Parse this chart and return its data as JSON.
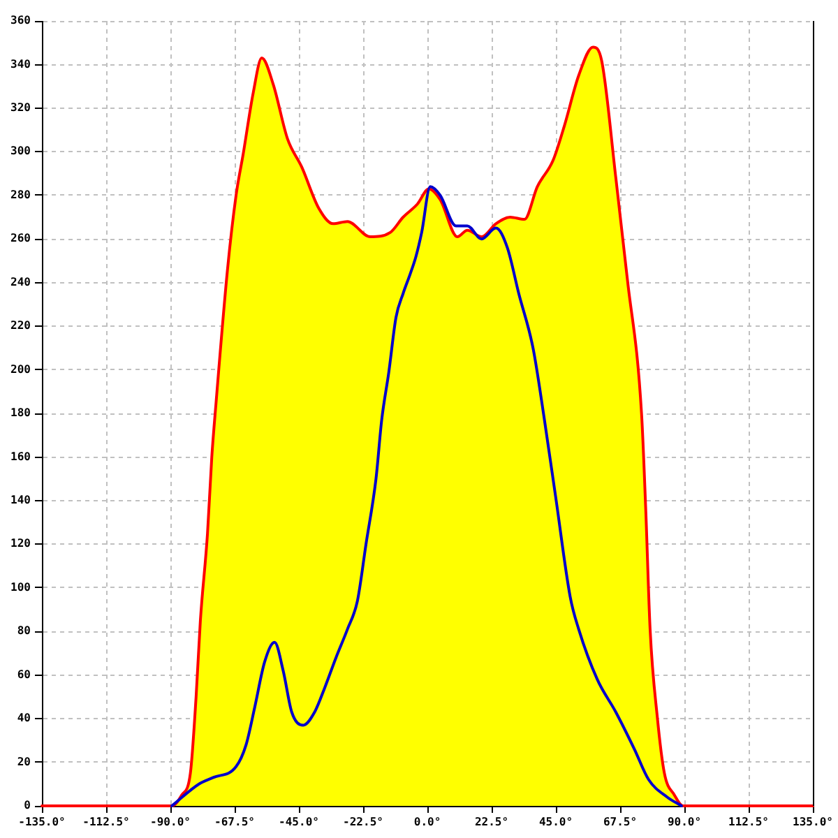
{
  "chart_data": {
    "type": "area",
    "xlim": [
      -135,
      135
    ],
    "xticks": [
      {
        "value": -135,
        "label": "-135.0°"
      },
      {
        "value": -112.5,
        "label": "-112.5°"
      },
      {
        "value": -90,
        "label": "-90.0°"
      },
      {
        "value": -67.5,
        "label": "-67.5°"
      },
      {
        "value": -45,
        "label": "-45.0°"
      },
      {
        "value": -22.5,
        "label": "-22.5°"
      },
      {
        "value": 0,
        "label": "0.0°"
      },
      {
        "value": 22.5,
        "label": "22.5°"
      },
      {
        "value": 45,
        "label": "45.0°"
      },
      {
        "value": 67.5,
        "label": "67.5°"
      },
      {
        "value": 90,
        "label": "90.0°"
      },
      {
        "value": 112.5,
        "label": "112.5°"
      },
      {
        "value": 135,
        "label": "135.0°"
      }
    ],
    "ylim": [
      0,
      360
    ],
    "yticks": [
      0,
      20,
      40,
      60,
      80,
      100,
      120,
      140,
      160,
      180,
      200,
      220,
      240,
      260,
      280,
      300,
      320,
      340,
      360
    ],
    "grid": true,
    "series": [
      {
        "color": "#ff0000",
        "colors": [
          "#ffff00",
          "#ffff00",
          "#ffff00",
          "#ffff00",
          "#ffff00",
          "#ffff00",
          "#ffff00",
          "#ffff00",
          "#ffff00",
          "#ffff00",
          "#ffff00",
          "#ffff00",
          "#ffff00",
          "#ffff00",
          "#ffff00",
          "#ffff00",
          "#ffff00",
          "#ffff00",
          "#ffff00",
          "#ffff00",
          "#ffff00",
          "#ffff00",
          "#ffff00",
          "#ffff00",
          "#ffff00",
          "#ffff00",
          "#ffff00",
          "#ffff00",
          "#ffff00",
          "#ffff00",
          "#ffff00",
          "#ffff00",
          "#ffff00",
          "#ffff00",
          "#ffff00",
          "#ffff00",
          "#ffff00",
          "#ffff00",
          "#ffff00",
          "#ffff00",
          "#ffff00",
          "#ffff00",
          "#ffff00",
          "#ffff00",
          "#ffff00",
          "#ffff00",
          "#ffff00",
          "#ffff00"
        ],
        "x": [
          -135,
          -89.5,
          -86,
          -83,
          -81,
          -79.5,
          -77,
          -75.5,
          -74,
          -70,
          -67,
          -64.5,
          -61,
          -58,
          -54,
          -49,
          -44,
          -38,
          -33,
          -28,
          -20,
          -13,
          -8.5,
          -3.5,
          0.5,
          4.5,
          10.5,
          14,
          19,
          24,
          29,
          34,
          38.5,
          44,
          48,
          53,
          58,
          61,
          66,
          70,
          75,
          76.5,
          78,
          80.5,
          83,
          86.5,
          89.5,
          135
        ],
        "values": [
          0,
          0,
          5,
          15,
          50,
          85,
          125,
          160,
          185,
          246,
          280,
          299,
          327,
          343,
          331,
          306,
          293,
          274,
          267,
          268,
          261,
          263,
          270,
          276,
          283,
          278,
          261,
          264,
          261,
          267,
          270,
          269,
          284,
          296,
          312,
          335,
          348,
          342,
          288,
          242,
          180,
          135,
          81,
          41,
          15,
          5,
          0,
          0
        ]
      },
      {
        "type": "line",
        "color": "#0000cc",
        "x": [
          -89.5,
          -80,
          -75,
          -67,
          -63.5,
          -60.5,
          -57,
          -53.5,
          -50.5,
          -47.5,
          -43.5,
          -39.5,
          -36,
          -32,
          -28,
          -24.5,
          -21.5,
          -18,
          -16,
          -13.5,
          -11,
          -8.5,
          -6,
          -4,
          -2,
          1,
          4.5,
          10,
          14,
          19,
          24,
          28,
          32,
          37,
          41,
          45,
          50,
          53,
          59.5,
          66,
          72.5,
          77.5,
          84,
          89
        ],
        "values": [
          0,
          10,
          13,
          18,
          28,
          45,
          66,
          75,
          62,
          43,
          37,
          43,
          54,
          68,
          81,
          94,
          120,
          150,
          177,
          199,
          224,
          235,
          244,
          252,
          263,
          284,
          280,
          266,
          266,
          260,
          265,
          256,
          235,
          210,
          177,
          141,
          96,
          81,
          58,
          43,
          26,
          12,
          4,
          0
        ]
      }
    ]
  }
}
